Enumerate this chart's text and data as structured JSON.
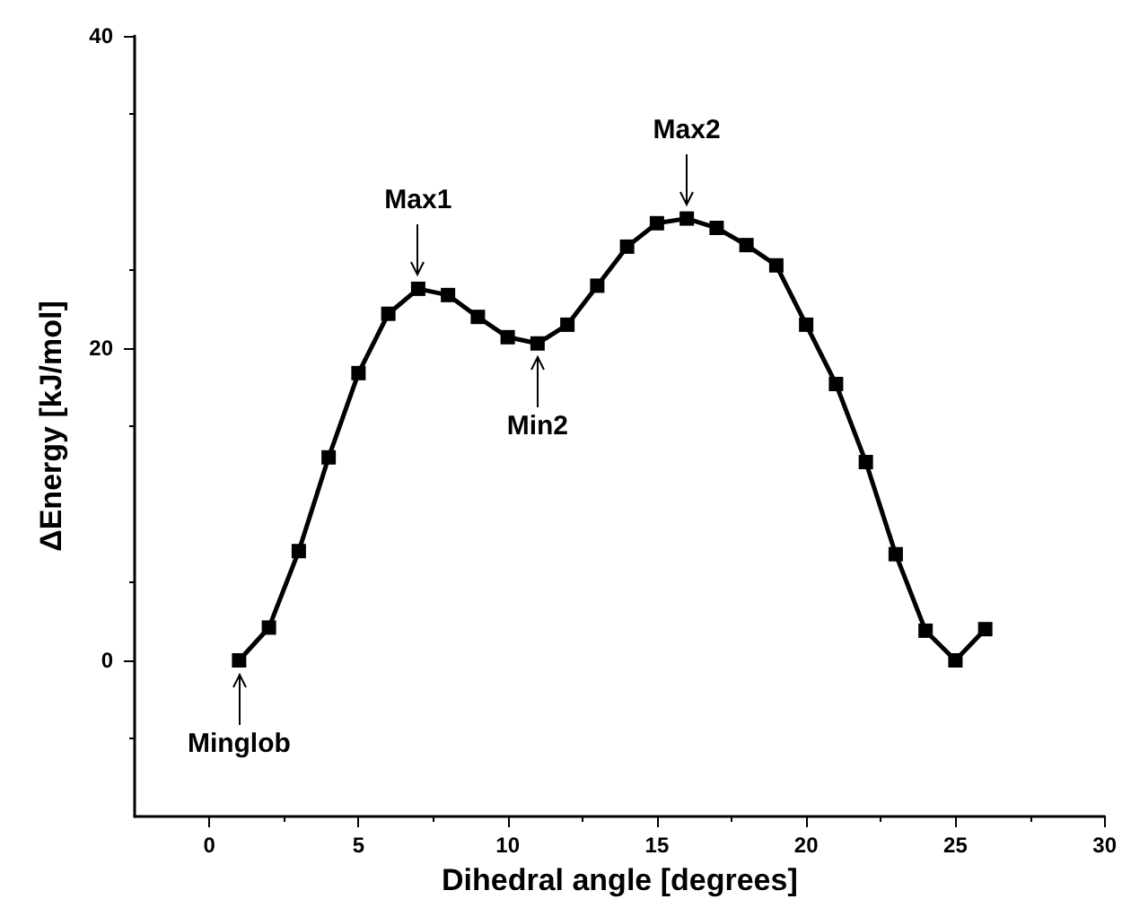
{
  "chart_data": {
    "type": "line",
    "xlabel": "Dihedral angle [degrees]",
    "ylabel": "ΔEnergy [kJ/mol]",
    "x": [
      1,
      2,
      3,
      4,
      5,
      6,
      7,
      8,
      9,
      10,
      11,
      12,
      13,
      14,
      15,
      16,
      17,
      18,
      19,
      20,
      21,
      22,
      23,
      24,
      25,
      26
    ],
    "series": [
      {
        "color": "#000000",
        "values": [
          0,
          2.1,
          7,
          13,
          18.4,
          22.2,
          23.8,
          23.4,
          22,
          20.7,
          20.3,
          21.5,
          24,
          26.5,
          28,
          28.3,
          27.7,
          26.6,
          25.3,
          21.5,
          17.7,
          12.7,
          6.8,
          1.9,
          0,
          2
        ]
      }
    ],
    "xlim": [
      -2.5,
      30
    ],
    "xticks": [
      0,
      5,
      10,
      15,
      20,
      25,
      30
    ],
    "ylim": [
      -10,
      40
    ],
    "yticks": [
      0,
      20,
      40
    ],
    "marker": "square",
    "line_style": "solid",
    "annotations": [
      {
        "text": "Max1",
        "x": 7,
        "y": 23.8
      },
      {
        "text": "Max2",
        "x": 16,
        "y": 28.3
      },
      {
        "text": "Min2",
        "x": 11,
        "y": 20.3
      },
      {
        "text": "Minglob",
        "x": 1,
        "y": 0
      }
    ]
  }
}
